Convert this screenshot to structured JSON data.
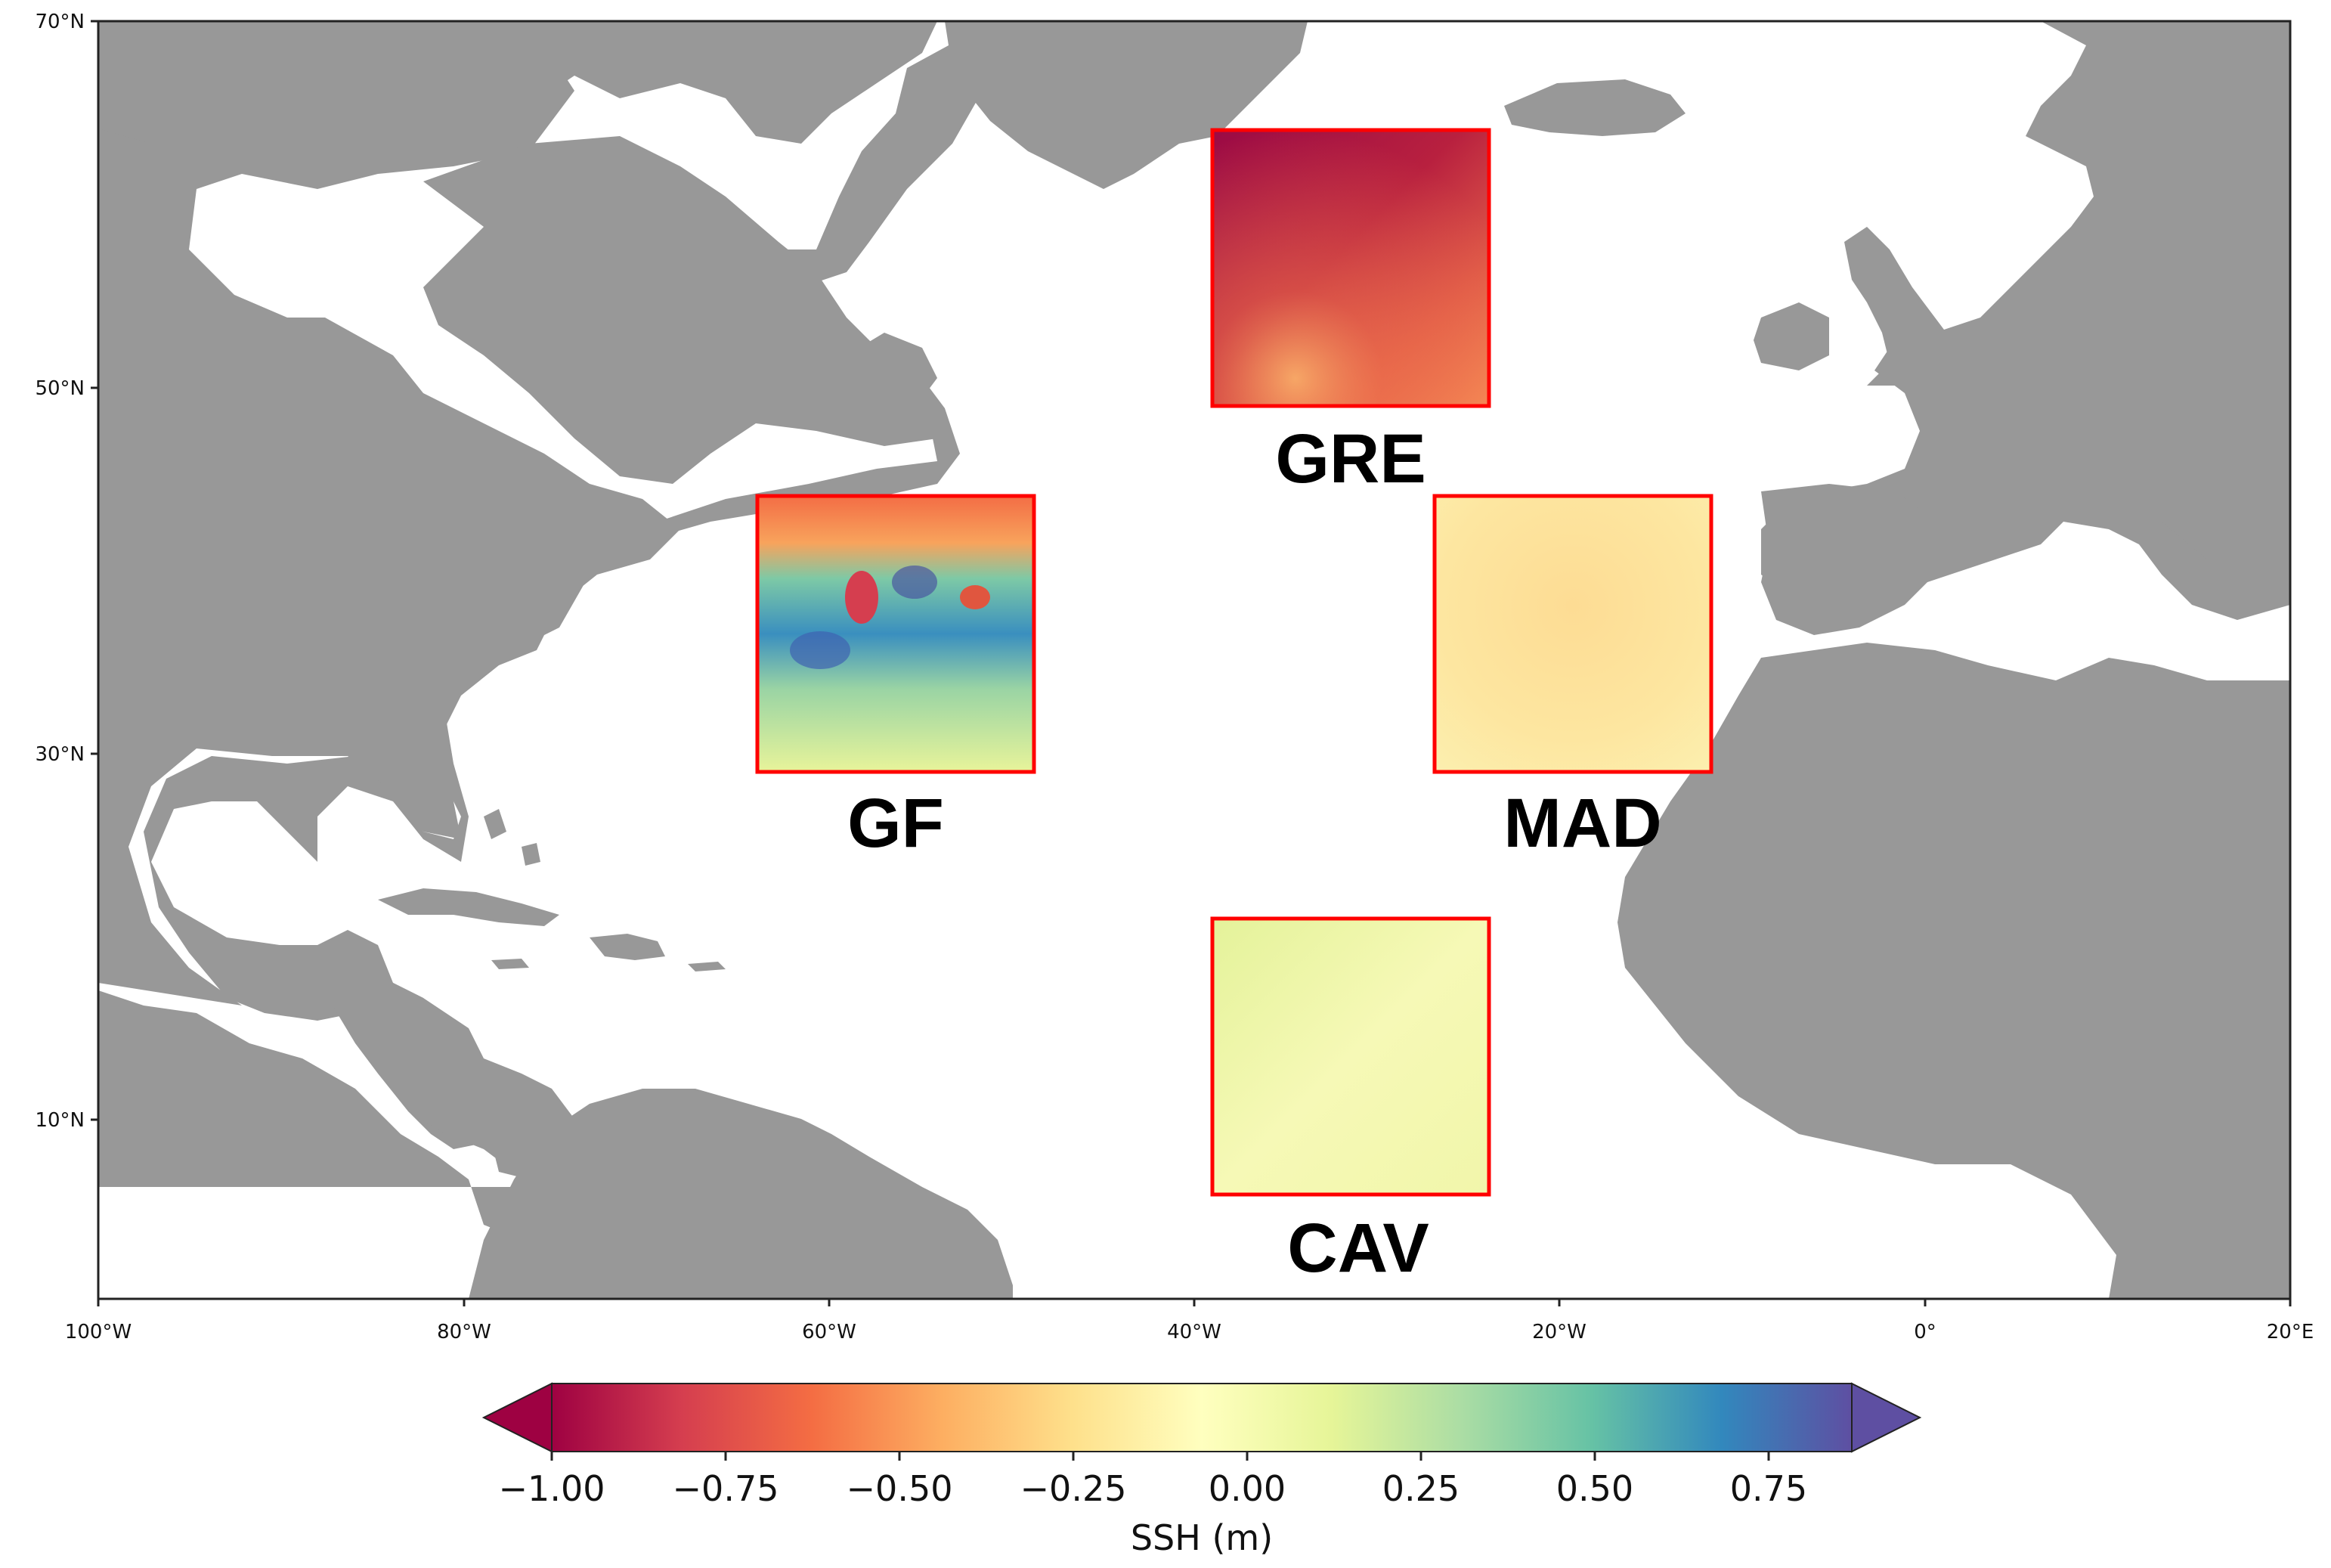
{
  "map": {
    "y_ticks": [
      "70°N",
      "50°N",
      "30°N",
      "10°N"
    ],
    "x_ticks": [
      "100°W",
      "80°W",
      "60°W",
      "40°W",
      "20°W",
      "0°",
      "20°E"
    ],
    "land_color": "#989898",
    "ocean_color": "#ffffff",
    "box_outline_color": "#ff0000"
  },
  "regions": [
    {
      "id": "GRE",
      "label": "GRE",
      "mean_ssh": -0.85
    },
    {
      "id": "GF",
      "label": "GF",
      "mean_ssh": 0.35
    },
    {
      "id": "MAD",
      "label": "MAD",
      "mean_ssh": -0.2
    },
    {
      "id": "CAV",
      "label": "CAV",
      "mean_ssh": 0.05
    }
  ],
  "colorbar": {
    "colormap": "Spectral",
    "ticks": [
      "−1.00",
      "−0.75",
      "−0.50",
      "−0.25",
      "0.00",
      "0.25",
      "0.50",
      "0.75"
    ],
    "label": "SSH (m)",
    "extend": "both"
  }
}
